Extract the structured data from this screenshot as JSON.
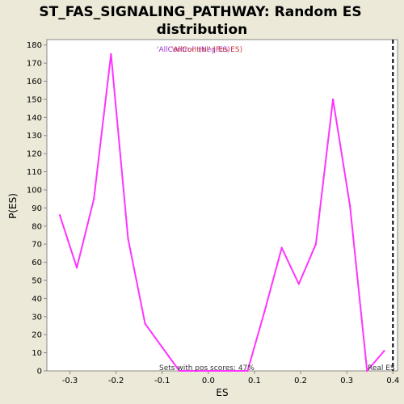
{
  "chart_data": {
    "type": "line",
    "title_line1": "ST_FAS_SIGNALING_PATHWAY: Random ES",
    "title_line2": "distribution",
    "xlabel": "ES",
    "ylabel": "P(ES)",
    "xlim": [
      -0.35,
      0.41
    ],
    "ylim": [
      0,
      183
    ],
    "x_ticks": [
      "-0.3",
      "-0.2",
      "-0.1",
      "0.0",
      "0.1",
      "0.2",
      "0.3",
      "0.4"
    ],
    "x_tick_values": [
      -0.3,
      -0.2,
      -0.1,
      0.0,
      0.1,
      0.2,
      0.3,
      0.4
    ],
    "y_ticks": [
      "0",
      "10",
      "20",
      "30",
      "40",
      "50",
      "60",
      "70",
      "80",
      "90",
      "100",
      "110",
      "120",
      "130",
      "140",
      "150",
      "160",
      "170",
      "180"
    ],
    "y_tick_values": [
      0,
      10,
      20,
      30,
      40,
      50,
      60,
      70,
      80,
      90,
      100,
      110,
      120,
      130,
      140,
      150,
      160,
      170,
      180
    ],
    "grid": false,
    "legend": {
      "placement": "top-center",
      "label_a": "'AllControl' (Neg ES)",
      "label_b": "'AllControl' (Pos ES)",
      "color_a": "#9933cc",
      "color_b": "#cc3333"
    },
    "series": [
      {
        "color": "#ff33ff",
        "x": [
          -0.322,
          -0.285,
          -0.248,
          -0.211,
          -0.174,
          -0.137,
          -0.1,
          -0.063,
          0.085,
          0.122,
          0.159,
          0.196,
          0.233,
          0.27,
          0.307,
          0.344,
          0.381
        ],
        "y": [
          86,
          57,
          95,
          175,
          73,
          26,
          13,
          0,
          0,
          33,
          68,
          48,
          70,
          150,
          91,
          0,
          11
        ]
      }
    ],
    "real_es": {
      "x": 0.4,
      "label": "Real ES",
      "color": "#000000"
    },
    "annotation": "Sets with pos scores: 47%"
  },
  "colors": {
    "background": "#ece9d8",
    "plot_background": "#ffffff",
    "line": "#ff33ff"
  }
}
